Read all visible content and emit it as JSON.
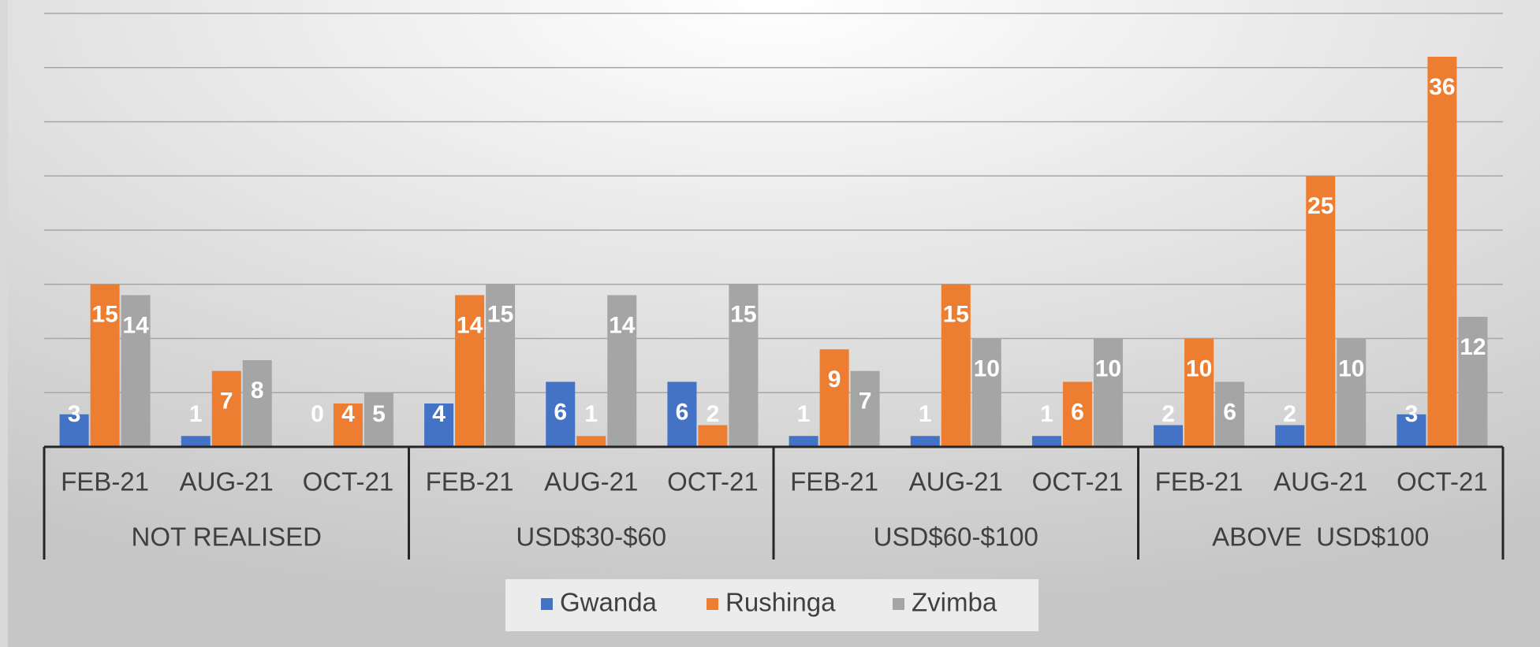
{
  "chart_data": {
    "type": "bar",
    "categories": [
      "FEB-21",
      "AUG-21",
      "OCT-21",
      "FEB-21",
      "AUG-21",
      "OCT-21",
      "FEB-21",
      "AUG-21",
      "OCT-21",
      "FEB-21",
      "AUG-21",
      "OCT-21"
    ],
    "category_groups": [
      "NOT REALISED",
      "USD$30-$60",
      "USD$60-$100",
      "ABOVE  USD$100"
    ],
    "series": [
      {
        "name": "Gwanda",
        "color": "#4472c4",
        "values": [
          3,
          1,
          0,
          4,
          6,
          6,
          1,
          1,
          1,
          2,
          2,
          3
        ]
      },
      {
        "name": "Rushinga",
        "color": "#ed7d31",
        "values": [
          15,
          7,
          4,
          14,
          1,
          2,
          9,
          15,
          6,
          10,
          25,
          36
        ]
      },
      {
        "name": "Zvimba",
        "color": "#a5a5a5",
        "values": [
          14,
          8,
          5,
          15,
          14,
          15,
          7,
          10,
          10,
          6,
          10,
          12
        ]
      }
    ],
    "ylim": [
      0,
      40
    ],
    "yticks": [
      0,
      5,
      10,
      15,
      20,
      25,
      30,
      35,
      40
    ],
    "grid": true,
    "legend": "bottom"
  }
}
